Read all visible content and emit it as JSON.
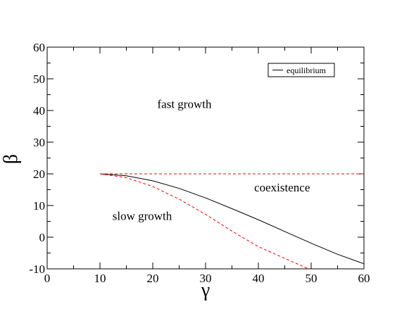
{
  "chart_data": {
    "type": "line",
    "xlabel": "γ",
    "ylabel": "β",
    "xlim": [
      0,
      60
    ],
    "ylim": [
      -10,
      60
    ],
    "xticks": [
      0,
      10,
      20,
      30,
      40,
      50,
      60
    ],
    "yticks": [
      -10,
      0,
      10,
      20,
      30,
      40,
      50,
      60
    ],
    "xtick_labels": [
      "0",
      "10",
      "20",
      "30",
      "40",
      "50",
      "60"
    ],
    "ytick_labels": [
      "-10",
      "0",
      "10",
      "20",
      "30",
      "40",
      "50",
      "60"
    ],
    "grid": false,
    "legend": {
      "position": "top-right",
      "entries": [
        "equilibrium"
      ]
    },
    "series": [
      {
        "name": "equilibrium",
        "color": "#000000",
        "style": "solid",
        "x": [
          10,
          15,
          20,
          25,
          30,
          35,
          40,
          45,
          50,
          55,
          60
        ],
        "y": [
          20,
          19.4,
          17.8,
          15.4,
          12.4,
          9.0,
          5.5,
          1.8,
          -1.9,
          -5.4,
          -8.4
        ]
      },
      {
        "color": "#ff0000",
        "style": "dashed",
        "x": [
          10,
          60
        ],
        "y": [
          20,
          20
        ]
      },
      {
        "color": "#ff0000",
        "style": "dashed",
        "x": [
          10,
          15,
          20,
          25,
          30,
          35,
          40,
          45,
          49.5
        ],
        "y": [
          20,
          18.8,
          16.0,
          12.0,
          7.2,
          1.9,
          -3.0,
          -6.7,
          -10
        ]
      }
    ],
    "annotations": [
      {
        "text": "fast growth",
        "x": 26,
        "y": 40.8
      },
      {
        "text": "coexistence",
        "x": 44.5,
        "y": 14.5
      },
      {
        "text": "slow growth",
        "x": 18,
        "y": 5.5
      }
    ]
  }
}
